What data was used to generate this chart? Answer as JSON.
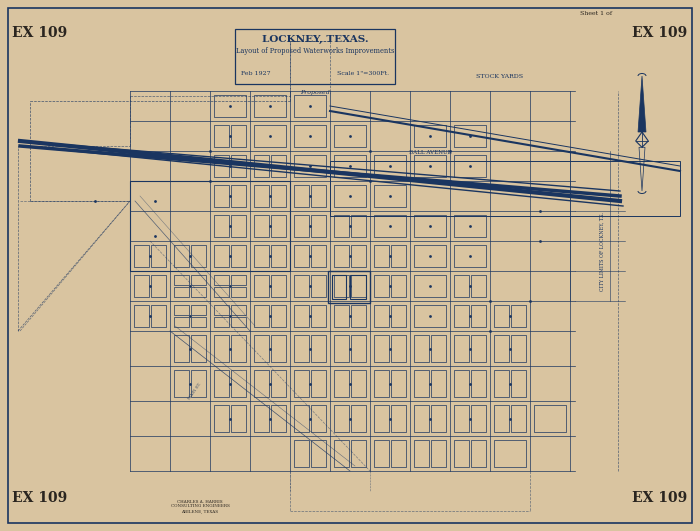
{
  "bg_color": "#D9C4A0",
  "line_color": "#1a3560",
  "text_color": "#1a3560",
  "stamp_color": "#2a2520",
  "title": "LOCKNEY, TEXAS.",
  "subtitle": "Layout of Proposed Waterworks Improvements",
  "date": "Feb 1927",
  "scale": "Scale 1\"=300Ft.",
  "sheet": "Sheet 1 of",
  "ex109": "EX 109",
  "figsize": [
    7.0,
    5.31
  ],
  "dpi": 100
}
